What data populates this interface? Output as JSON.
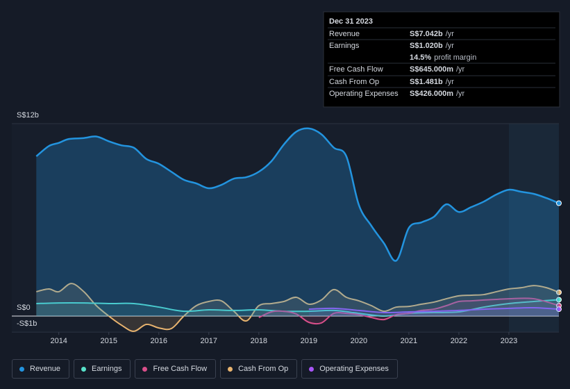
{
  "chart_data": {
    "type": "line",
    "xlim": [
      2013.06,
      2024.0
    ],
    "xticks": [
      2014,
      2015,
      2016,
      2017,
      2018,
      2019,
      2020,
      2021,
      2022,
      2023
    ],
    "ylim": [
      -1,
      12
    ],
    "yticks": [
      {
        "value": 12,
        "label": "S$12b"
      },
      {
        "value": 0,
        "label": "S$0"
      },
      {
        "value": -1,
        "label": "-S$1b"
      }
    ],
    "forecast_start": 2023,
    "series": [
      {
        "name": "Revenue",
        "color": "#2394df",
        "x": [
          2013.55,
          2013.8,
          2014.0,
          2014.2,
          2014.5,
          2014.75,
          2015.0,
          2015.25,
          2015.5,
          2015.75,
          2016.0,
          2016.25,
          2016.5,
          2016.75,
          2017.0,
          2017.25,
          2017.5,
          2017.75,
          2018.0,
          2018.25,
          2018.5,
          2018.75,
          2019.0,
          2019.25,
          2019.5,
          2019.75,
          2020.0,
          2020.25,
          2020.5,
          2020.75,
          2021.0,
          2021.25,
          2021.5,
          2021.75,
          2022.0,
          2022.25,
          2022.5,
          2022.75,
          2023.0,
          2023.25,
          2023.5,
          2023.75,
          2024.0
        ],
        "values": [
          9.96,
          10.6,
          10.8,
          11.04,
          11.1,
          11.2,
          10.9,
          10.65,
          10.5,
          9.8,
          9.5,
          9.0,
          8.5,
          8.27,
          7.97,
          8.18,
          8.57,
          8.66,
          9.0,
          9.65,
          10.7,
          11.5,
          11.7,
          11.34,
          10.5,
          9.96,
          6.93,
          5.63,
          4.55,
          3.46,
          5.5,
          5.84,
          6.19,
          6.97,
          6.49,
          6.8,
          7.14,
          7.58,
          7.88,
          7.75,
          7.62,
          7.36,
          7.04
        ]
      },
      {
        "name": "Earnings",
        "color": "#58e1c9",
        "x": [
          2013.55,
          2014.0,
          2014.5,
          2015.0,
          2015.5,
          2016.0,
          2016.5,
          2017.0,
          2017.5,
          2018.0,
          2018.5,
          2019.0,
          2019.5,
          2020.0,
          2020.5,
          2021.0,
          2021.5,
          2022.0,
          2022.5,
          2023.0,
          2023.5,
          2024.0
        ],
        "values": [
          0.78,
          0.82,
          0.82,
          0.78,
          0.78,
          0.56,
          0.3,
          0.39,
          0.35,
          0.39,
          0.3,
          0.3,
          0.35,
          0.17,
          0,
          0.17,
          0.22,
          0.26,
          0.56,
          0.78,
          0.91,
          1.02
        ]
      },
      {
        "name": "Free Cash Flow",
        "color": "#d94f8a",
        "x": [
          2018.0,
          2018.25,
          2018.5,
          2018.75,
          2019.0,
          2019.25,
          2019.5,
          2019.75,
          2020.0,
          2020.25,
          2020.5,
          2020.75,
          2021.0,
          2021.25,
          2021.5,
          2021.75,
          2022.0,
          2022.25,
          2022.5,
          2022.75,
          2023.0,
          2023.5,
          2024.0
        ],
        "values": [
          -0.09,
          0.26,
          0.3,
          0.13,
          -0.39,
          -0.43,
          0.17,
          0.17,
          0.09,
          -0.09,
          -0.22,
          0.09,
          0.17,
          0.35,
          0.43,
          0.65,
          0.91,
          0.95,
          1.0,
          1.04,
          1.08,
          1.08,
          0.65
        ]
      },
      {
        "name": "Cash From Op",
        "color": "#e9b46f",
        "x": [
          2013.55,
          2013.8,
          2014.0,
          2014.25,
          2014.5,
          2014.75,
          2015.0,
          2015.25,
          2015.5,
          2015.75,
          2016.0,
          2016.25,
          2016.5,
          2016.75,
          2017.0,
          2017.25,
          2017.5,
          2017.75,
          2018.0,
          2018.25,
          2018.5,
          2018.75,
          2019.0,
          2019.25,
          2019.5,
          2019.75,
          2020.0,
          2020.25,
          2020.5,
          2020.75,
          2021.0,
          2021.25,
          2021.5,
          2021.75,
          2022.0,
          2022.25,
          2022.5,
          2022.75,
          2023.0,
          2023.25,
          2023.5,
          2023.75,
          2024.0
        ],
        "values": [
          1.52,
          1.69,
          1.52,
          2.03,
          1.52,
          0.65,
          0,
          -0.56,
          -0.95,
          -0.52,
          -0.74,
          -0.78,
          0,
          0.65,
          0.91,
          0.95,
          0.3,
          -0.3,
          0.65,
          0.78,
          0.91,
          1.17,
          0.74,
          1.0,
          1.65,
          1.17,
          0.95,
          0.65,
          0.3,
          0.56,
          0.6,
          0.74,
          0.87,
          1.08,
          1.26,
          1.3,
          1.34,
          1.52,
          1.69,
          1.77,
          1.9,
          1.77,
          1.48
        ]
      },
      {
        "name": "Operating Expenses",
        "color": "#a855f7",
        "x": [
          2019.0,
          2019.5,
          2020.0,
          2020.5,
          2021.0,
          2021.5,
          2022.0,
          2022.5,
          2023.0,
          2023.5,
          2024.0
        ],
        "values": [
          0.43,
          0.48,
          0.35,
          0.22,
          0.26,
          0.3,
          0.35,
          0.43,
          0.48,
          0.52,
          0.43
        ]
      }
    ],
    "tooltip": {
      "date": "Dec 31 2023",
      "rows": [
        {
          "label": "Revenue",
          "value": "S$7.042b",
          "unit": "/yr"
        },
        {
          "label": "Earnings",
          "value": "S$1.020b",
          "unit": "/yr"
        },
        {
          "label": "Free Cash Flow",
          "value": "S$645.000m",
          "unit": "/yr"
        },
        {
          "label": "Cash From Op",
          "value": "S$1.481b",
          "unit": "/yr"
        },
        {
          "label": "Operating Expenses",
          "value": "S$426.000m",
          "unit": "/yr"
        }
      ],
      "margin": {
        "value": "14.5%",
        "label": "profit margin"
      }
    }
  }
}
